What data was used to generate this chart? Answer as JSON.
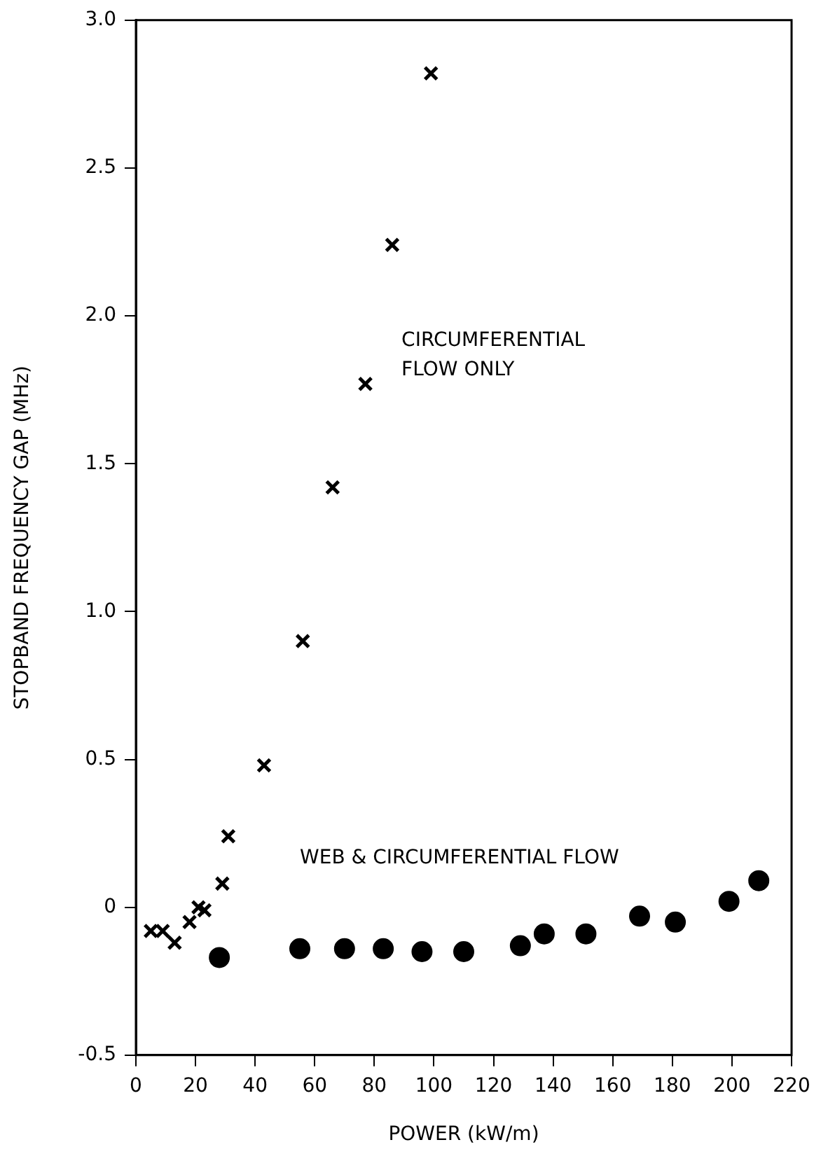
{
  "chart_data": {
    "type": "scatter",
    "xlabel": "POWER (kW/m)",
    "ylabel": "STOPBAND FREQUENCY GAP (MHz)",
    "xlim": [
      0,
      220
    ],
    "xticks": [
      0,
      20,
      40,
      60,
      80,
      100,
      120,
      140,
      160,
      180,
      200,
      220
    ],
    "ylim": [
      -0.5,
      3.0
    ],
    "yticks": [
      {
        "value": -0.5,
        "label": "-0.5"
      },
      0,
      {
        "value": 0.5,
        "label": "0.5"
      },
      {
        "value": 1,
        "label": "1.0"
      },
      {
        "value": 1.5,
        "label": "1.5"
      },
      {
        "value": 2,
        "label": "2.0"
      },
      {
        "value": 2.5,
        "label": "2.5"
      },
      {
        "value": 3,
        "label": "3.0"
      }
    ],
    "series": [
      {
        "name": "CIRCUMFERENTIAL FLOW ONLY",
        "color": "#000000",
        "marker": "cross",
        "x": [
          5,
          9,
          13,
          18,
          21,
          23,
          29,
          31,
          43,
          56,
          66,
          77,
          86,
          99
        ],
        "values": [
          -0.08,
          -0.08,
          -0.12,
          -0.05,
          0,
          -0.01,
          0.08,
          0.24,
          0.48,
          0.9,
          1.42,
          1.77,
          2.24,
          2.82
        ]
      },
      {
        "name": "WEB & CIRCUMFERENTIAL FLOW",
        "color": "#000000",
        "marker": "circle",
        "x": [
          28,
          55,
          70,
          83,
          96,
          110,
          129,
          137,
          151,
          169,
          181,
          199,
          209
        ],
        "values": [
          -0.17,
          -0.14,
          -0.14,
          -0.14,
          -0.15,
          -0.15,
          -0.13,
          -0.09,
          -0.09,
          -0.03,
          -0.05,
          0.02,
          0.09
        ]
      }
    ]
  }
}
